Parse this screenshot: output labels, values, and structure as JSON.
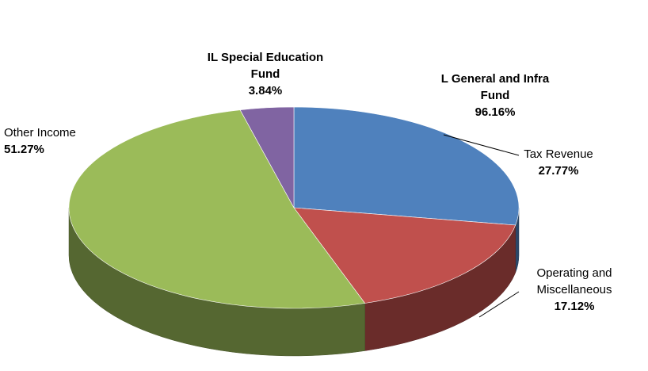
{
  "chart_data": {
    "type": "pie3d",
    "categories": [
      "Tax Revenue",
      "Operating and Miscellaneous",
      "Other Income",
      "IL Special Education Fund"
    ],
    "values": [
      27.77,
      17.12,
      51.27,
      3.84
    ],
    "value_labels": [
      "27.77%",
      "17.12%",
      "51.27%",
      "3.84%"
    ],
    "colors": [
      "#4f81bd",
      "#c0504d",
      "#9bbb59",
      "#8064a2"
    ],
    "annotations": [
      {
        "text": "L General and Infra Fund",
        "label": "96.16%"
      }
    ]
  }
}
